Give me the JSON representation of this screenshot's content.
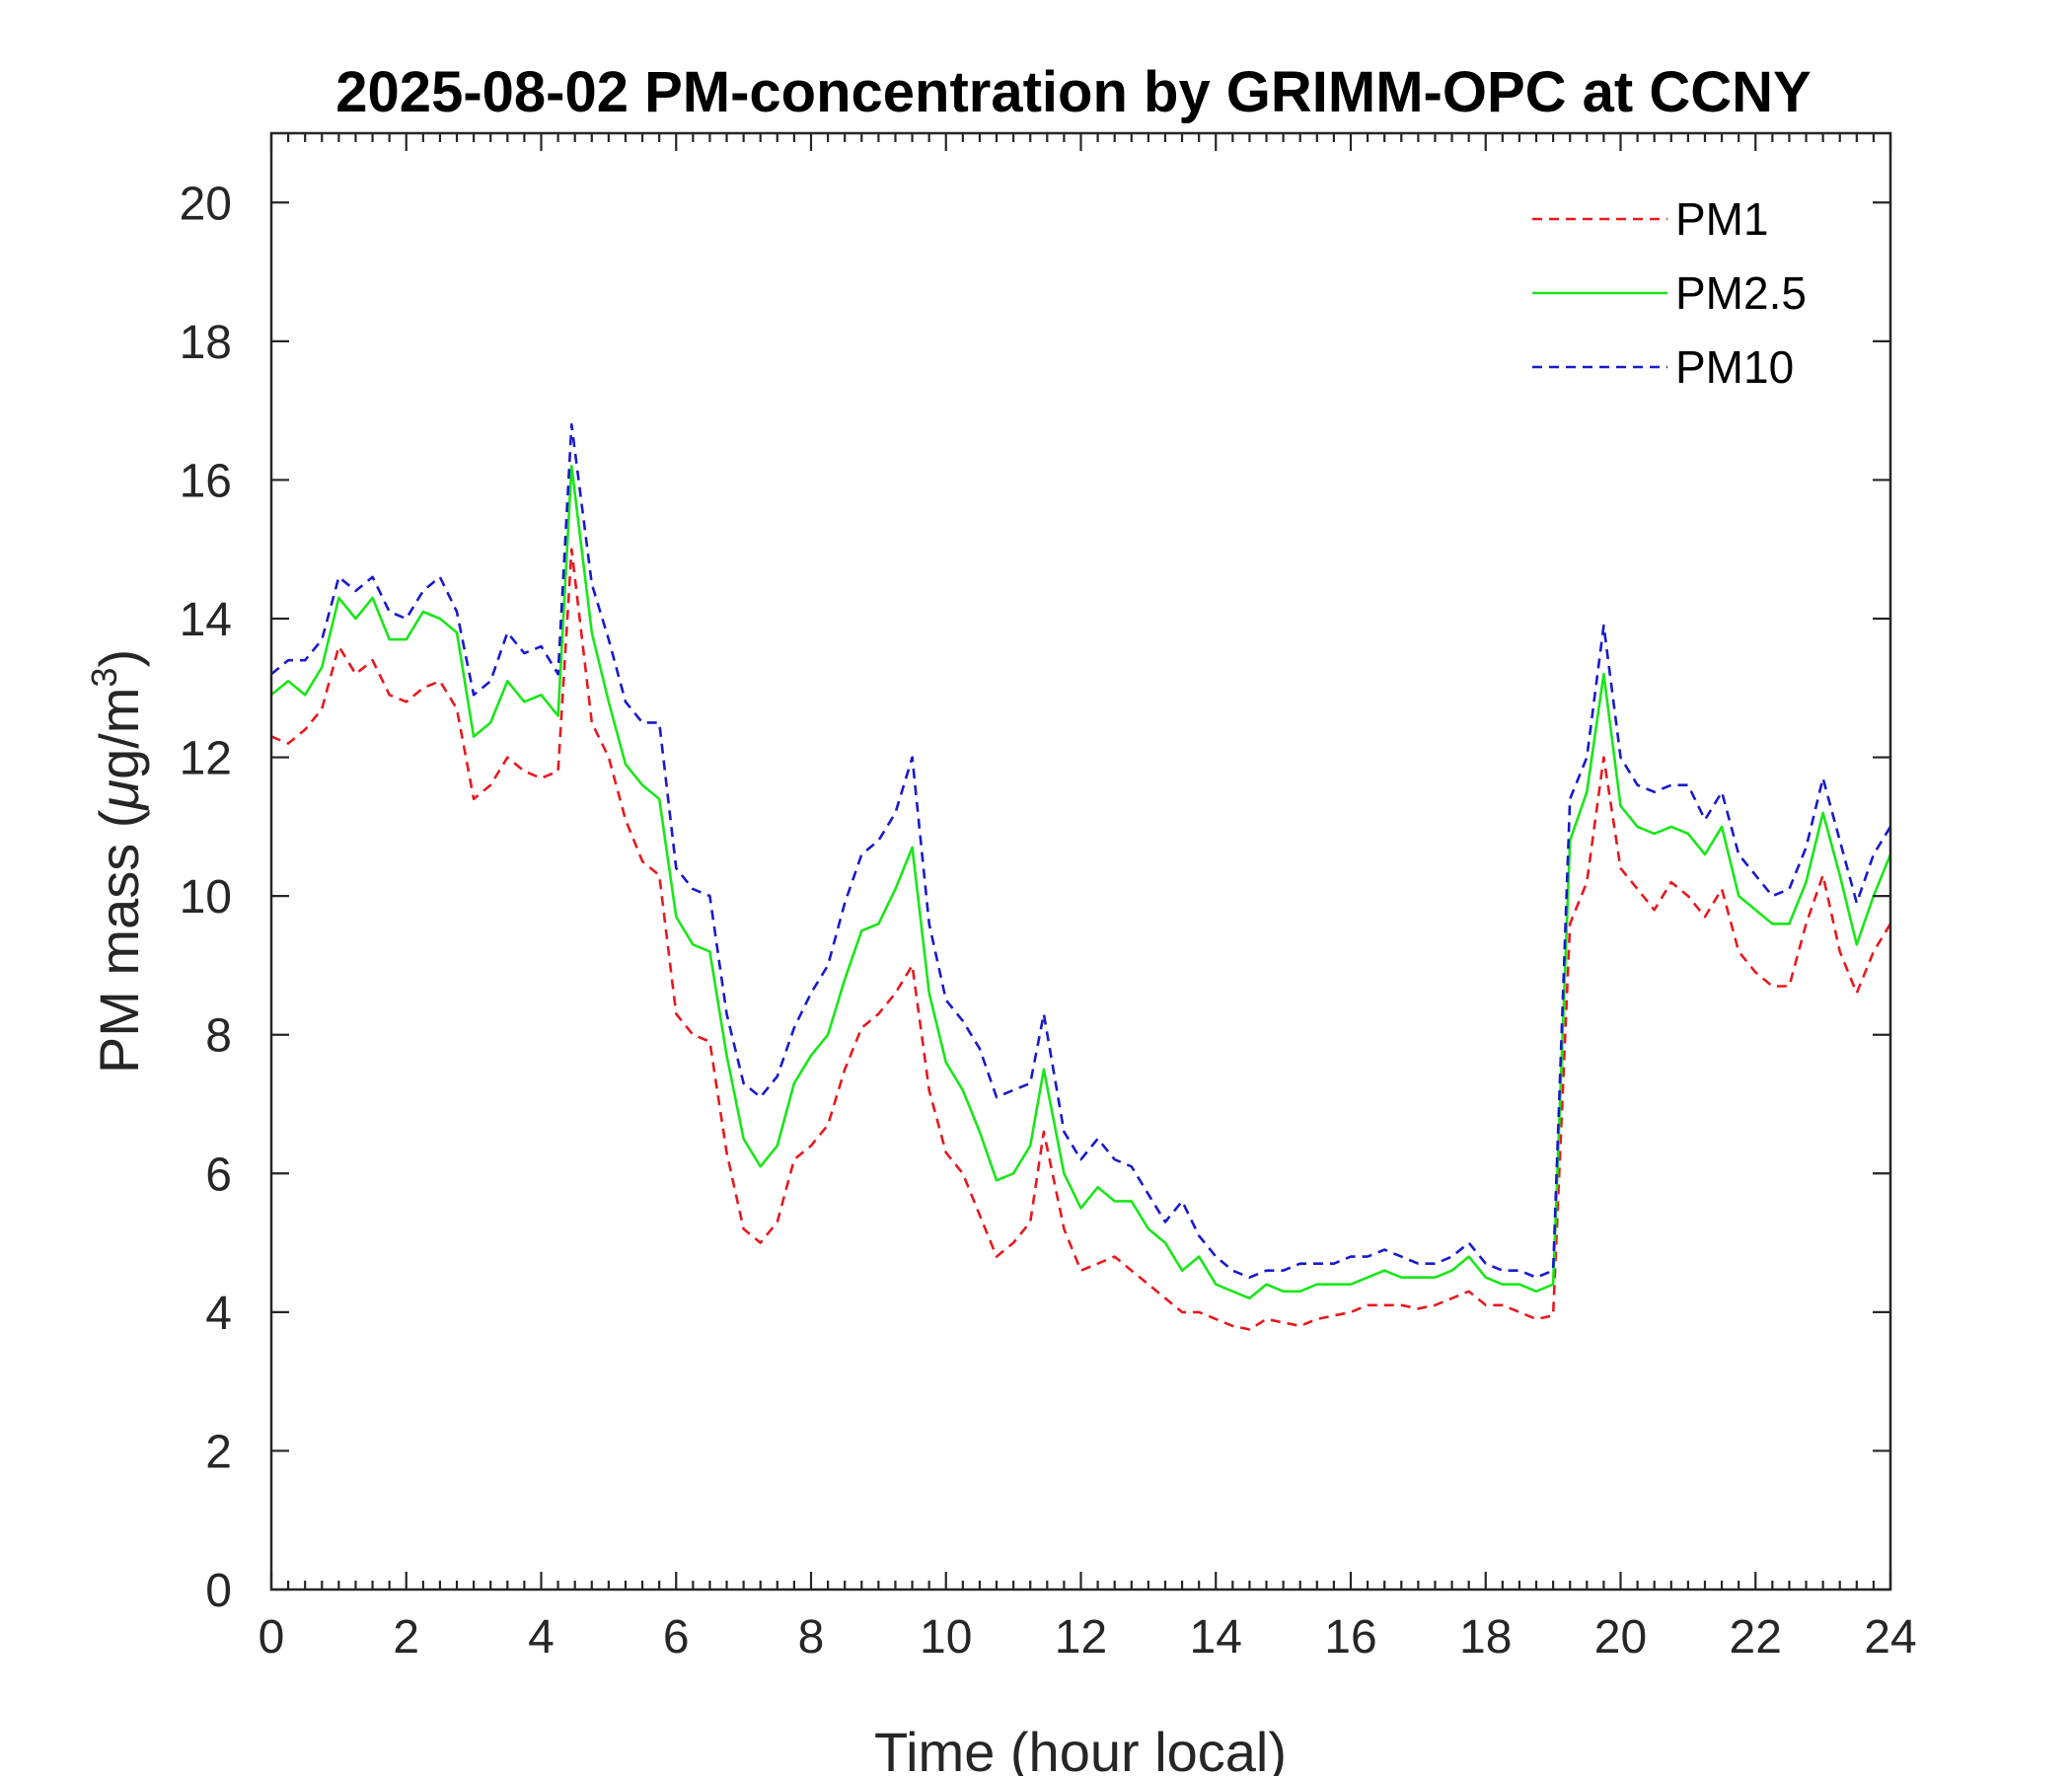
{
  "chart_data": {
    "type": "line",
    "title": "2025-08-02 PM-concentration by GRIMM-OPC at CCNY",
    "xlabel": "Time (hour local)",
    "ylabel": "PM mass (μg/m³)",
    "ylabel_parts": {
      "prefix": "PM mass (",
      "mu": "μ",
      "unit": "g/m",
      "sup": "3",
      "suffix": ")"
    },
    "xlim": [
      0,
      24
    ],
    "ylim": [
      0,
      21
    ],
    "xticks": [
      0,
      2,
      4,
      6,
      8,
      10,
      12,
      14,
      16,
      18,
      20,
      22,
      24
    ],
    "yticks": [
      0,
      2,
      4,
      6,
      8,
      10,
      12,
      14,
      16,
      18,
      20
    ],
    "xtick_labels": [
      "0",
      "2",
      "4",
      "6",
      "8",
      "10",
      "12",
      "14",
      "16",
      "18",
      "20",
      "22",
      "24"
    ],
    "ytick_labels": [
      "0",
      "2",
      "4",
      "6",
      "8",
      "10",
      "12",
      "14",
      "16",
      "18",
      "20"
    ],
    "grid": false,
    "legend_position": "top-right",
    "x": [
      0,
      0.25,
      0.5,
      0.75,
      1.0,
      1.25,
      1.5,
      1.75,
      2.0,
      2.25,
      2.5,
      2.75,
      3.0,
      3.25,
      3.5,
      3.75,
      4.0,
      4.25,
      4.45,
      4.75,
      5.0,
      5.25,
      5.5,
      5.75,
      6.0,
      6.25,
      6.5,
      6.75,
      7.0,
      7.25,
      7.5,
      7.75,
      8.0,
      8.25,
      8.5,
      8.75,
      9.0,
      9.25,
      9.5,
      9.75,
      10.0,
      10.25,
      10.5,
      10.75,
      11.0,
      11.25,
      11.45,
      11.75,
      12.0,
      12.25,
      12.5,
      12.75,
      13.0,
      13.25,
      13.5,
      13.75,
      14.0,
      14.25,
      14.5,
      14.75,
      15.0,
      15.25,
      15.5,
      15.75,
      16.0,
      16.25,
      16.5,
      16.75,
      17.0,
      17.25,
      17.5,
      17.75,
      18.0,
      18.25,
      18.5,
      18.75,
      19.0,
      19.25,
      19.5,
      19.75,
      20.0,
      20.25,
      20.5,
      20.75,
      21.0,
      21.25,
      21.5,
      21.75,
      22.0,
      22.25,
      22.5,
      22.75,
      23.0,
      23.25,
      23.5,
      23.75,
      24.0
    ],
    "series": [
      {
        "name": "PM1",
        "color": "#e6191f",
        "dash": "dashed",
        "values": [
          12.3,
          12.2,
          12.4,
          12.7,
          13.6,
          13.2,
          13.4,
          12.9,
          12.8,
          13.0,
          13.1,
          12.7,
          11.4,
          11.6,
          12.0,
          11.8,
          11.7,
          11.8,
          15.0,
          12.5,
          12.0,
          11.1,
          10.5,
          10.3,
          8.3,
          8.0,
          7.9,
          6.3,
          5.2,
          5.0,
          5.3,
          6.2,
          6.4,
          6.7,
          7.5,
          8.1,
          8.3,
          8.6,
          9.0,
          7.2,
          6.3,
          6.0,
          5.4,
          4.8,
          5.0,
          5.3,
          6.6,
          5.2,
          4.6,
          4.7,
          4.8,
          4.6,
          4.4,
          4.2,
          4.0,
          4.0,
          3.9,
          3.8,
          3.75,
          3.9,
          3.85,
          3.8,
          3.9,
          3.95,
          4.0,
          4.1,
          4.1,
          4.1,
          4.05,
          4.1,
          4.2,
          4.3,
          4.1,
          4.1,
          4.0,
          3.9,
          3.95,
          9.6,
          10.2,
          12.0,
          10.4,
          10.1,
          9.8,
          10.2,
          10.0,
          9.7,
          10.1,
          9.2,
          8.9,
          8.7,
          8.7,
          9.6,
          10.3,
          9.2,
          8.6,
          9.2,
          9.6
        ]
      },
      {
        "name": "PM2.5",
        "color": "#19e619",
        "dash": "solid",
        "values": [
          12.9,
          13.1,
          12.9,
          13.3,
          14.3,
          14.0,
          14.3,
          13.7,
          13.7,
          14.1,
          14.0,
          13.8,
          12.3,
          12.5,
          13.1,
          12.8,
          12.9,
          12.6,
          16.2,
          13.8,
          12.8,
          11.9,
          11.6,
          11.4,
          9.7,
          9.3,
          9.2,
          7.7,
          6.5,
          6.1,
          6.4,
          7.3,
          7.7,
          8.0,
          8.8,
          9.5,
          9.6,
          10.1,
          10.7,
          8.6,
          7.6,
          7.2,
          6.6,
          5.9,
          6.0,
          6.4,
          7.5,
          6.0,
          5.5,
          5.8,
          5.6,
          5.6,
          5.2,
          5.0,
          4.6,
          4.8,
          4.4,
          4.3,
          4.2,
          4.4,
          4.3,
          4.3,
          4.4,
          4.4,
          4.4,
          4.5,
          4.6,
          4.5,
          4.5,
          4.5,
          4.6,
          4.8,
          4.5,
          4.4,
          4.4,
          4.3,
          4.4,
          10.8,
          11.5,
          13.2,
          11.3,
          11.0,
          10.9,
          11.0,
          10.9,
          10.6,
          11.0,
          10.0,
          9.8,
          9.6,
          9.6,
          10.2,
          11.2,
          10.3,
          9.3,
          10.0,
          10.6
        ]
      },
      {
        "name": "PM10",
        "color": "#1919cc",
        "dash": "dashed",
        "values": [
          13.2,
          13.4,
          13.4,
          13.7,
          14.6,
          14.4,
          14.6,
          14.1,
          14.0,
          14.4,
          14.6,
          14.1,
          12.9,
          13.1,
          13.8,
          13.5,
          13.6,
          13.2,
          16.8,
          14.5,
          13.7,
          12.8,
          12.5,
          12.5,
          10.4,
          10.1,
          10.0,
          8.3,
          7.3,
          7.1,
          7.4,
          8.1,
          8.6,
          9.0,
          9.9,
          10.6,
          10.8,
          11.2,
          12.0,
          9.6,
          8.5,
          8.2,
          7.8,
          7.1,
          7.2,
          7.3,
          8.3,
          6.6,
          6.2,
          6.5,
          6.2,
          6.1,
          5.7,
          5.3,
          5.6,
          5.1,
          4.8,
          4.6,
          4.5,
          4.6,
          4.6,
          4.7,
          4.7,
          4.7,
          4.8,
          4.8,
          4.9,
          4.8,
          4.7,
          4.7,
          4.8,
          5.0,
          4.7,
          4.6,
          4.6,
          4.5,
          4.6,
          11.4,
          12.0,
          13.9,
          12.0,
          11.6,
          11.5,
          11.6,
          11.6,
          11.1,
          11.5,
          10.6,
          10.3,
          10.0,
          10.1,
          10.7,
          11.7,
          10.8,
          9.9,
          10.6,
          11.0
        ]
      }
    ]
  }
}
